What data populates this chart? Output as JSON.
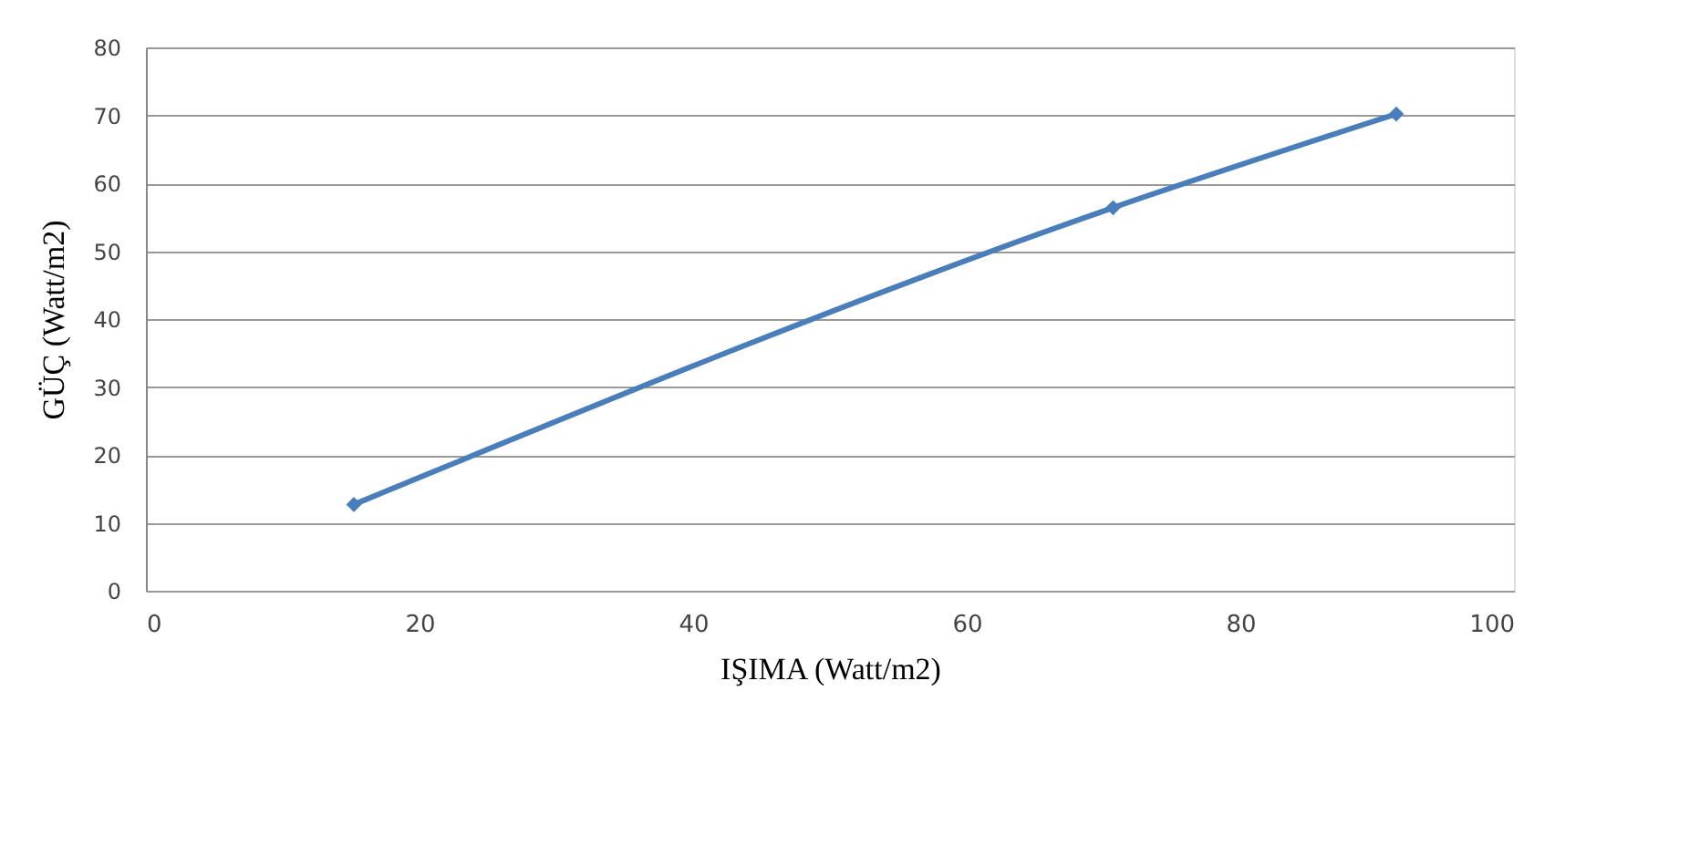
{
  "chart_data": {
    "type": "line",
    "xlabel": "IŞIMA (Watt/m2)",
    "ylabel": "GÜÇ (Watt/m2)",
    "x": [
      15.2,
      70.7,
      91.4
    ],
    "series": [
      {
        "color": "#4a7ebb",
        "values": [
          12.7,
          56.4,
          70.2
        ]
      }
    ],
    "xlim": [
      0,
      100
    ],
    "xticks": [
      0,
      20,
      40,
      60,
      80,
      100
    ],
    "ylim": [
      0,
      80
    ],
    "yticks": [
      0,
      10,
      20,
      30,
      40,
      50,
      60,
      70,
      80
    ],
    "grid": "y",
    "marker": "diamond",
    "line_style": "solid"
  }
}
